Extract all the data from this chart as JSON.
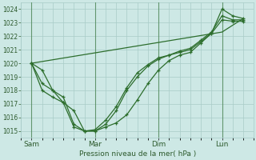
{
  "title": "Pression niveau de la mer( hPa )",
  "background_color": "#cde8e5",
  "grid_color": "#a8ccc8",
  "line_color": "#2d6e2d",
  "tick_label_color": "#2d5a2d",
  "ylim": [
    1014.5,
    1024.5
  ],
  "yticks": [
    1015,
    1016,
    1017,
    1018,
    1019,
    1020,
    1021,
    1022,
    1023,
    1024
  ],
  "xtick_labels": [
    "Sam",
    "Mar",
    "Dim",
    "Lun"
  ],
  "xtick_positions": [
    1,
    4,
    7,
    10
  ],
  "vline_positions": [
    1,
    4,
    7,
    10
  ],
  "xlim": [
    0.6,
    11.5
  ],
  "series": [
    {
      "x": [
        1.0,
        1.5,
        2.0,
        2.5,
        3.0,
        3.5,
        4.0,
        4.5,
        5.0,
        5.5,
        6.0,
        6.5,
        7.0,
        7.5,
        8.0,
        8.5,
        9.0,
        9.5,
        10.0,
        10.5,
        11.0
      ],
      "y": [
        1020.0,
        1019.5,
        1018.0,
        1017.1,
        1016.5,
        1015.0,
        1015.0,
        1015.3,
        1015.6,
        1016.2,
        1017.3,
        1018.5,
        1019.5,
        1020.2,
        1020.6,
        1020.8,
        1021.5,
        1022.2,
        1024.0,
        1023.5,
        1023.3
      ],
      "marker": "+"
    },
    {
      "x": [
        1.0,
        1.5,
        2.0,
        2.5,
        3.0,
        3.5,
        4.0,
        4.5,
        5.0,
        5.5,
        6.0,
        6.5,
        7.0,
        7.5,
        8.0,
        8.5,
        9.0,
        9.5,
        10.0,
        10.5,
        11.0
      ],
      "y": [
        1020.0,
        1018.5,
        1018.0,
        1017.5,
        1015.5,
        1015.0,
        1015.0,
        1015.5,
        1016.5,
        1018.0,
        1019.0,
        1019.8,
        1020.3,
        1020.6,
        1020.9,
        1021.1,
        1021.7,
        1022.3,
        1023.5,
        1023.2,
        1023.2
      ],
      "marker": "+"
    },
    {
      "x": [
        1.0,
        1.5,
        2.0,
        2.5,
        3.0,
        3.5,
        4.0,
        4.5,
        5.0,
        5.5,
        6.0,
        6.5,
        7.0,
        7.5,
        8.0,
        8.5,
        9.0,
        9.5,
        10.0,
        10.5,
        11.0
      ],
      "y": [
        1020.0,
        1018.0,
        1017.5,
        1017.1,
        1015.3,
        1015.0,
        1015.1,
        1015.8,
        1016.8,
        1018.2,
        1019.3,
        1019.9,
        1020.4,
        1020.6,
        1020.8,
        1021.0,
        1021.6,
        1022.2,
        1023.2,
        1023.1,
        1023.1
      ],
      "marker": "+"
    },
    {
      "x": [
        1.0,
        10.0,
        11.0
      ],
      "y": [
        1020.0,
        1022.3,
        1023.3
      ],
      "marker": null
    }
  ]
}
